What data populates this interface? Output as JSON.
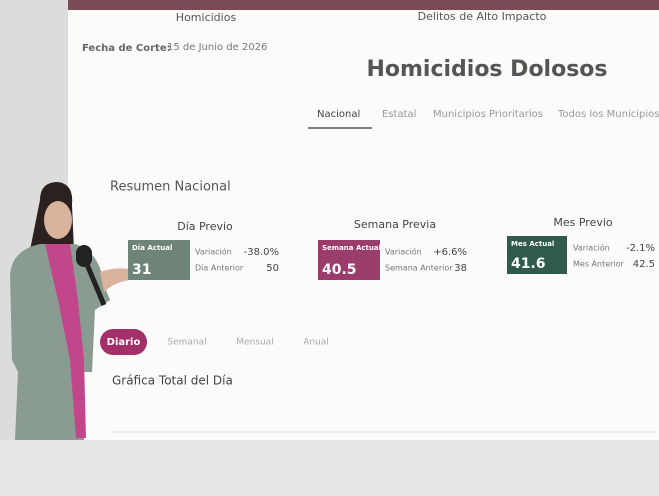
{
  "header": {
    "left_title": "Homicidios",
    "center_title": "Delitos de Alto Impacto",
    "cutoff_label": "Fecha de Corte:",
    "cutoff_date": "15 de Junio de 2026",
    "main_title": "Homicidios Dolosos"
  },
  "scope_tabs": [
    "Nacional",
    "Estatal",
    "Municipios Prioritarios",
    "Todos los Municipios"
  ],
  "summary": {
    "title": "Resumen Nacional",
    "cards": [
      {
        "heading": "Día Previo",
        "badge": "Día Actual",
        "current": "31",
        "variation_label": "Variación",
        "variation": "-38.0%",
        "previous_label": "Día Anterior",
        "previous": "50"
      },
      {
        "heading": "Semana Previa",
        "badge": "Semana Actual",
        "current": "40.5",
        "variation_label": "Variación",
        "variation": "+6.6%",
        "previous_label": "Semana Anterior",
        "previous": "38"
      },
      {
        "heading": "Mes Previo",
        "badge": "Mes Actual",
        "current": "41.6",
        "variation_label": "Variación",
        "variation": "-2.1%",
        "previous_label": "Mes Anterior",
        "previous": "42.5"
      }
    ]
  },
  "period_tabs": [
    "Diario",
    "Semanal",
    "Mensual",
    "Anual"
  ],
  "chart_title": "Gráfica Total del Día"
}
